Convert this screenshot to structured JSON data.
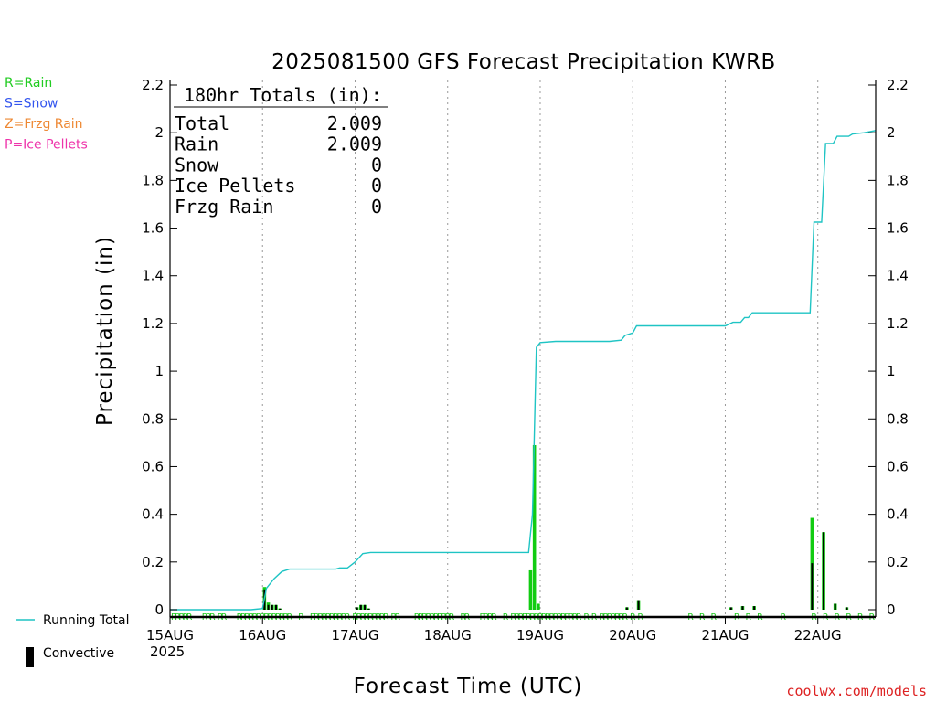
{
  "chart_data": {
    "type": "bar+line",
    "title": "2025081500 GFS Forecast Precipitation KWRB",
    "xlabel": "Forecast Time (UTC)",
    "ylabel": "Precipitation (in)",
    "ylim": [
      0,
      2.2
    ],
    "yticks": [
      "0",
      "0.2",
      "0.4",
      "0.6",
      "0.8",
      "1",
      "1.2",
      "1.4",
      "1.6",
      "1.8",
      "2",
      "2.2"
    ],
    "x_range_hours": [
      0,
      183
    ],
    "x_ticks": [
      {
        "hour": 0,
        "label": "15AUG"
      },
      {
        "hour": 24,
        "label": "16AUG"
      },
      {
        "hour": 48,
        "label": "17AUG"
      },
      {
        "hour": 72,
        "label": "18AUG"
      },
      {
        "hour": 96,
        "label": "19AUG"
      },
      {
        "hour": 120,
        "label": "20AUG"
      },
      {
        "hour": 144,
        "label": "21AUG"
      },
      {
        "hour": 168,
        "label": "22AUG"
      }
    ],
    "year_label": "2025",
    "grid": "vertical dotted at day boundaries",
    "ptype_legend": [
      {
        "label": "R=Rain",
        "color": "#22cc22"
      },
      {
        "label": "S=Snow",
        "color": "#3355ee"
      },
      {
        "label": "Z=Frzg Rain",
        "color": "#ee8833"
      },
      {
        "label": "P=Ice Pellets",
        "color": "#ee33aa"
      }
    ],
    "series_legend": [
      {
        "label": "Running Total",
        "color": "#1fc4c4",
        "kind": "line"
      },
      {
        "label": "Convective",
        "color": "#000000",
        "kind": "bar"
      }
    ],
    "totals_box": {
      "header": "180hr Totals (in):",
      "rows": [
        {
          "label": "Total",
          "value": "2.009"
        },
        {
          "label": "Rain",
          "value": "2.009"
        },
        {
          "label": "Snow",
          "value": "0"
        },
        {
          "label": "Ice Pellets",
          "value": "0"
        },
        {
          "label": "Frzg Rain",
          "value": "0"
        }
      ]
    },
    "running_total": [
      [
        0,
        0
      ],
      [
        21,
        0
      ],
      [
        24,
        0.005
      ],
      [
        25,
        0.09
      ],
      [
        27,
        0.13
      ],
      [
        29,
        0.16
      ],
      [
        31,
        0.17
      ],
      [
        36,
        0.17
      ],
      [
        43,
        0.17
      ],
      [
        44,
        0.175
      ],
      [
        46,
        0.175
      ],
      [
        48,
        0.2
      ],
      [
        50,
        0.235
      ],
      [
        52,
        0.24
      ],
      [
        60,
        0.24
      ],
      [
        72,
        0.24
      ],
      [
        84,
        0.24
      ],
      [
        93,
        0.24
      ],
      [
        94,
        0.4
      ],
      [
        95,
        1.1
      ],
      [
        96,
        1.12
      ],
      [
        100,
        1.125
      ],
      [
        108,
        1.125
      ],
      [
        114,
        1.125
      ],
      [
        117,
        1.13
      ],
      [
        118,
        1.15
      ],
      [
        120,
        1.16
      ],
      [
        121,
        1.19
      ],
      [
        122,
        1.19
      ],
      [
        144,
        1.19
      ],
      [
        146,
        1.205
      ],
      [
        148,
        1.205
      ],
      [
        149,
        1.225
      ],
      [
        150,
        1.225
      ],
      [
        151,
        1.245
      ],
      [
        153,
        1.245
      ],
      [
        165,
        1.245
      ],
      [
        166,
        1.245
      ],
      [
        167,
        1.625
      ],
      [
        169,
        1.625
      ],
      [
        170,
        1.955
      ],
      [
        172,
        1.955
      ],
      [
        173,
        1.985
      ],
      [
        176,
        1.985
      ],
      [
        177,
        1.995
      ],
      [
        180,
        2.0
      ],
      [
        183,
        2.009
      ]
    ],
    "precip_bars": [
      {
        "hour": 24.5,
        "total": 0.095,
        "convective": 0.085
      },
      {
        "hour": 25.5,
        "total": 0.03,
        "convective": 0.02
      },
      {
        "hour": 26.5,
        "total": 0.02,
        "convective": 0.02
      },
      {
        "hour": 27.5,
        "total": 0.02,
        "convective": 0.02
      },
      {
        "hour": 28.5,
        "total": 0.005,
        "convective": 0.005
      },
      {
        "hour": 48.5,
        "total": 0.01,
        "convective": 0.01
      },
      {
        "hour": 49.5,
        "total": 0.02,
        "convective": 0.02
      },
      {
        "hour": 50.5,
        "total": 0.02,
        "convective": 0.02
      },
      {
        "hour": 51.5,
        "total": 0.005,
        "convective": 0.005
      },
      {
        "hour": 93.5,
        "total": 0.165,
        "convective": 0.0
      },
      {
        "hour": 94.5,
        "total": 0.69,
        "convective": 0.0
      },
      {
        "hour": 95.5,
        "total": 0.025,
        "convective": 0.0
      },
      {
        "hour": 118.5,
        "total": 0.01,
        "convective": 0.01
      },
      {
        "hour": 121.5,
        "total": 0.04,
        "convective": 0.04
      },
      {
        "hour": 145.5,
        "total": 0.01,
        "convective": 0.01
      },
      {
        "hour": 148.5,
        "total": 0.015,
        "convective": 0.015
      },
      {
        "hour": 151.5,
        "total": 0.015,
        "convective": 0.015
      },
      {
        "hour": 166.5,
        "total": 0.385,
        "convective": 0.195
      },
      {
        "hour": 169.5,
        "total": 0.325,
        "convective": 0.325
      },
      {
        "hour": 172.5,
        "total": 0.025,
        "convective": 0.025
      },
      {
        "hour": 175.5,
        "total": 0.01,
        "convective": 0.01
      }
    ],
    "ptype_marks": {
      "symbol": "R",
      "hours": [
        1,
        2,
        3,
        4,
        5,
        9,
        10,
        11,
        13,
        14,
        18,
        19,
        20,
        21,
        22,
        23,
        24,
        25,
        26,
        27,
        28,
        29,
        30,
        31,
        34,
        37,
        38,
        39,
        40,
        41,
        42,
        43,
        44,
        45,
        46,
        48,
        49,
        50,
        51,
        52,
        53,
        54,
        55,
        56,
        58,
        59,
        64,
        65,
        66,
        67,
        68,
        69,
        70,
        71,
        72,
        73,
        76,
        77,
        81,
        82,
        83,
        84,
        87,
        89,
        90,
        91,
        92,
        93,
        94,
        95,
        96,
        97,
        98,
        99,
        100,
        101,
        102,
        103,
        104,
        105,
        106,
        108,
        110,
        112,
        113,
        114,
        115,
        116,
        117,
        118,
        120,
        122,
        135,
        138,
        141,
        147,
        150,
        153,
        159,
        167,
        170,
        173,
        176,
        179,
        182
      ]
    },
    "credit": "coolwx.com/models"
  }
}
